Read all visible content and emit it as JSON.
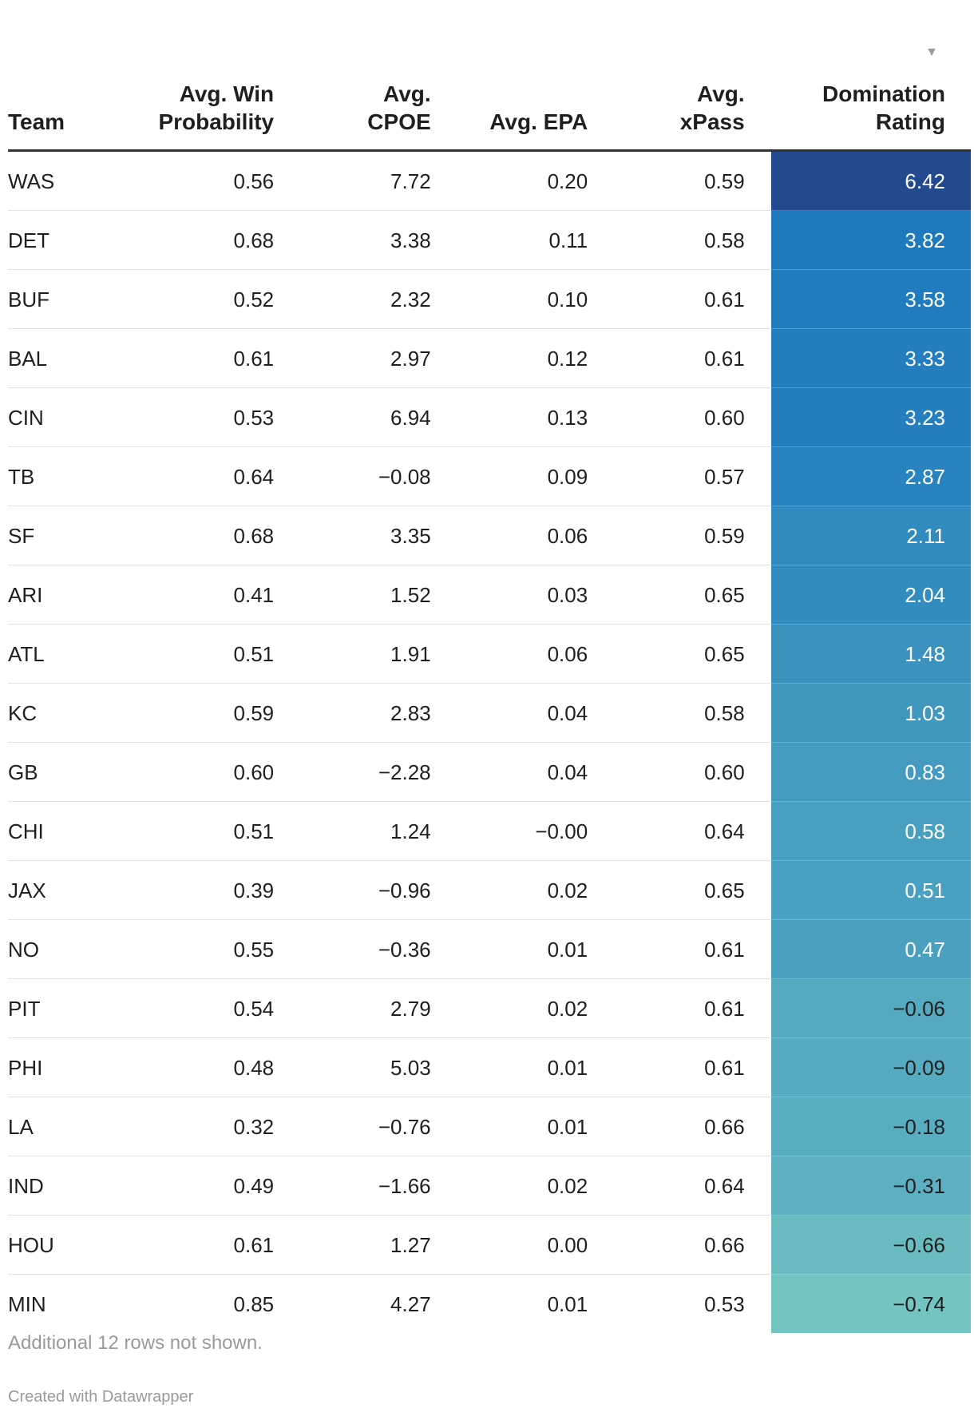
{
  "chart_data": {
    "type": "table",
    "columns": [
      "Team",
      "Avg. Win Probability",
      "Avg. CPOE",
      "Avg. EPA",
      "Avg. xPass",
      "Domination Rating"
    ],
    "header_lines": [
      [
        "",
        "Team"
      ],
      [
        "Avg. Win",
        "Probability"
      ],
      [
        "Avg.",
        "CPOE"
      ],
      [
        "",
        "Avg. EPA"
      ],
      [
        "Avg.",
        "xPass"
      ],
      [
        "Domination",
        "Rating"
      ]
    ],
    "sort": {
      "column": "Domination Rating",
      "order": "descending",
      "indicator": "▼"
    },
    "color_scale": {
      "column": "Domination Rating",
      "low_color": "#74c4c2",
      "high_color": "#234a8f"
    },
    "rows": [
      [
        "WAS",
        "0.56",
        "7.72",
        "0.20",
        "0.59",
        "6.42"
      ],
      [
        "DET",
        "0.68",
        "3.38",
        "0.11",
        "0.58",
        "3.82"
      ],
      [
        "BUF",
        "0.52",
        "2.32",
        "0.10",
        "0.61",
        "3.58"
      ],
      [
        "BAL",
        "0.61",
        "2.97",
        "0.12",
        "0.61",
        "3.33"
      ],
      [
        "CIN",
        "0.53",
        "6.94",
        "0.13",
        "0.60",
        "3.23"
      ],
      [
        "TB",
        "0.64",
        "−0.08",
        "0.09",
        "0.57",
        "2.87"
      ],
      [
        "SF",
        "0.68",
        "3.35",
        "0.06",
        "0.59",
        "2.11"
      ],
      [
        "ARI",
        "0.41",
        "1.52",
        "0.03",
        "0.65",
        "2.04"
      ],
      [
        "ATL",
        "0.51",
        "1.91",
        "0.06",
        "0.65",
        "1.48"
      ],
      [
        "KC",
        "0.59",
        "2.83",
        "0.04",
        "0.58",
        "1.03"
      ],
      [
        "GB",
        "0.60",
        "−2.28",
        "0.04",
        "0.60",
        "0.83"
      ],
      [
        "CHI",
        "0.51",
        "1.24",
        "−0.00",
        "0.64",
        "0.58"
      ],
      [
        "JAX",
        "0.39",
        "−0.96",
        "0.02",
        "0.65",
        "0.51"
      ],
      [
        "NO",
        "0.55",
        "−0.36",
        "0.01",
        "0.61",
        "0.47"
      ],
      [
        "PIT",
        "0.54",
        "2.79",
        "0.02",
        "0.61",
        "−0.06"
      ],
      [
        "PHI",
        "0.48",
        "5.03",
        "0.01",
        "0.61",
        "−0.09"
      ],
      [
        "LA",
        "0.32",
        "−0.76",
        "0.01",
        "0.66",
        "−0.18"
      ],
      [
        "IND",
        "0.49",
        "−1.66",
        "0.02",
        "0.64",
        "−0.31"
      ],
      [
        "HOU",
        "0.61",
        "1.27",
        "0.00",
        "0.66",
        "−0.66"
      ],
      [
        "MIN",
        "0.85",
        "4.27",
        "0.01",
        "0.53",
        "−0.74"
      ]
    ],
    "note": "Additional 12 rows not shown."
  },
  "footer": {
    "credit": "Created with Datawrapper"
  }
}
